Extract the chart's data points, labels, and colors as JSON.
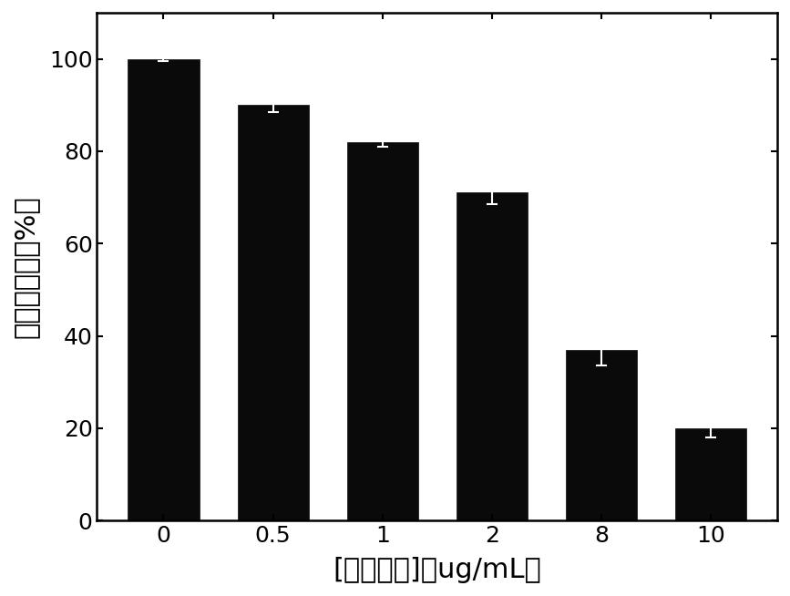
{
  "categories": [
    "0",
    "0.5",
    "1",
    "2",
    "8",
    "10"
  ],
  "values": [
    100,
    90,
    82,
    71,
    37,
    20
  ],
  "errors": [
    0.5,
    1.5,
    1.0,
    2.5,
    3.5,
    2.0
  ],
  "bar_color": "#0a0a0a",
  "edge_color": "#0a0a0a",
  "error_color": "#0a0a0a",
  "ylabel": "细胞存活率（%）",
  "xlabel": "[纳米粒子]（ug/mL）",
  "ylim": [
    0,
    110
  ],
  "yticks": [
    0,
    20,
    40,
    60,
    80,
    100
  ],
  "background_color": "#ffffff",
  "bar_width": 0.65,
  "spine_linewidth": 1.8,
  "tick_fontsize": 18,
  "label_fontsize": 22
}
